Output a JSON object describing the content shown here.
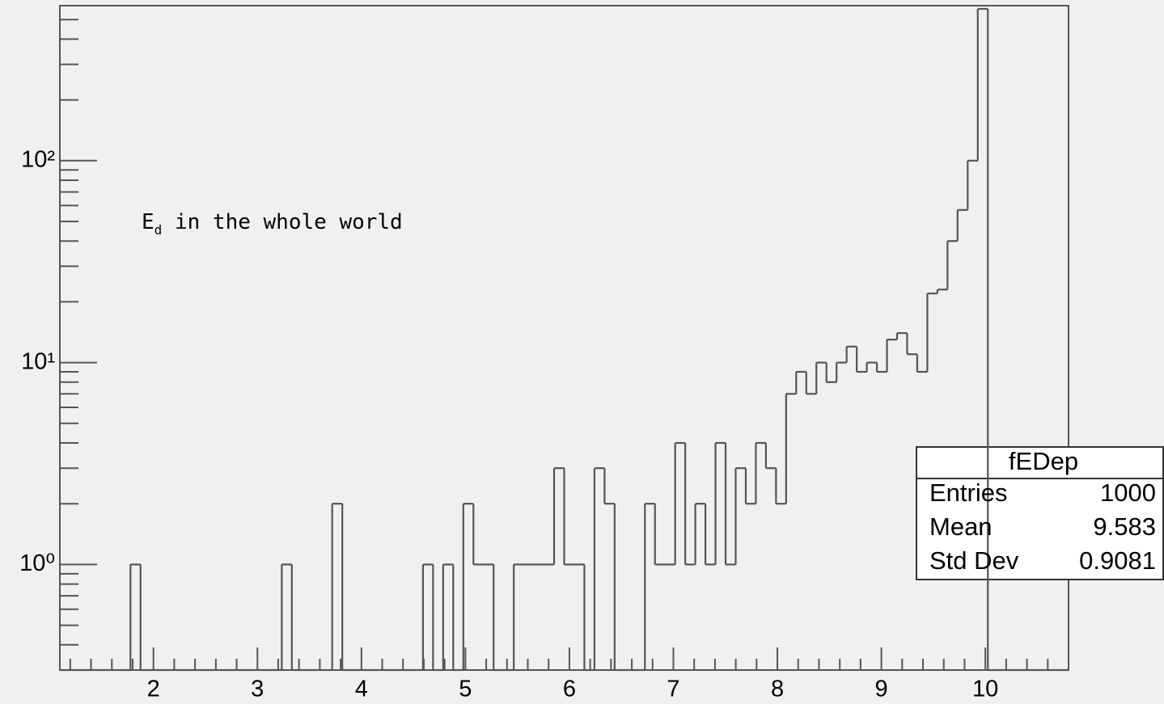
{
  "chart_data": {
    "type": "histogram",
    "bins": [
      1.1,
      1.197,
      1.294,
      1.391,
      1.488,
      1.585,
      1.682,
      1.779,
      1.876,
      1.973,
      2.07,
      2.167,
      2.264,
      2.361,
      2.458,
      2.555,
      2.652,
      2.749,
      2.846,
      2.943,
      3.04,
      3.137,
      3.234,
      3.331,
      3.428,
      3.525,
      3.622,
      3.719,
      3.816,
      3.913,
      4.01,
      4.107,
      4.204,
      4.301,
      4.398,
      4.495,
      4.592,
      4.689,
      4.786,
      4.883,
      4.98,
      5.077,
      5.174,
      5.271,
      5.368,
      5.465,
      5.562,
      5.659,
      5.756,
      5.853,
      5.95,
      6.047,
      6.144,
      6.241,
      6.338,
      6.435,
      6.532,
      6.629,
      6.726,
      6.823,
      6.92,
      7.017,
      7.114,
      7.211,
      7.308,
      7.405,
      7.502,
      7.599,
      7.696,
      7.793,
      7.89,
      7.987,
      8.084,
      8.181,
      8.278,
      8.375,
      8.472,
      8.569,
      8.666,
      8.763,
      8.86,
      8.957,
      9.054,
      9.151,
      9.248,
      9.345,
      9.442,
      9.539,
      9.636,
      9.733,
      9.83,
      9.927,
      10.024,
      10.121,
      10.218,
      10.315,
      10.412,
      10.509,
      10.606,
      10.703,
      10.8
    ],
    "values": [
      0,
      0,
      0,
      0,
      0,
      0,
      0,
      1,
      0,
      0,
      0,
      0,
      0,
      0,
      0,
      0,
      0,
      0,
      0,
      0,
      0,
      0,
      1,
      0,
      0,
      0,
      0,
      2,
      0,
      0,
      0,
      0,
      0,
      0,
      0,
      0,
      1,
      0,
      1,
      0,
      2,
      1,
      1,
      0,
      0,
      1,
      1,
      1,
      1,
      3,
      1,
      1,
      0,
      3,
      2,
      0,
      0,
      0,
      2,
      1,
      1,
      4,
      1,
      2,
      1,
      4,
      1,
      3,
      2,
      4,
      3,
      2,
      7,
      9,
      7,
      10,
      8,
      10,
      12,
      9,
      10,
      9,
      13,
      14,
      11,
      9,
      22,
      23,
      40,
      57,
      100,
      565,
      0,
      0,
      0,
      0,
      0,
      0,
      0,
      0
    ],
    "color": "#555555",
    "log_y": true,
    "xlim": [
      1.1,
      10.8
    ],
    "ylim": [
      0.3,
      586
    ],
    "xticks": [
      2,
      3,
      4,
      5,
      6,
      7,
      8,
      9,
      10
    ],
    "xminor_ticks": [
      1.2,
      1.4,
      1.6,
      1.8,
      2.2,
      2.4,
      2.6,
      2.8,
      3.2,
      3.4,
      3.6,
      3.8,
      4.2,
      4.4,
      4.6,
      4.8,
      5.2,
      5.4,
      5.6,
      5.8,
      6.2,
      6.4,
      6.6,
      6.8,
      7.2,
      7.4,
      7.6,
      7.8,
      8.2,
      8.4,
      8.6,
      8.8,
      9.2,
      9.4,
      9.6,
      9.8,
      10.2,
      10.4,
      10.6
    ],
    "yticks": [
      {
        "value": 1,
        "label": "10⁰"
      },
      {
        "value": 10,
        "label": "10¹"
      },
      {
        "value": 100,
        "label": "10²"
      }
    ],
    "yminor_ticks": [
      0.4,
      0.5,
      0.6,
      0.7,
      0.8,
      0.9,
      2,
      3,
      4,
      5,
      6,
      7,
      8,
      9,
      20,
      30,
      40,
      50,
      60,
      70,
      80,
      90,
      200,
      300,
      400,
      500
    ],
    "annotation": {
      "base": "E",
      "subscript": "d",
      "text": " in the whole world",
      "color": "#ff00ff"
    },
    "stats": {
      "title": "fEDep",
      "rows": [
        [
          "Entries",
          1000
        ],
        [
          "Mean",
          9.583
        ],
        [
          "Std Dev",
          0.9081
        ]
      ]
    }
  }
}
